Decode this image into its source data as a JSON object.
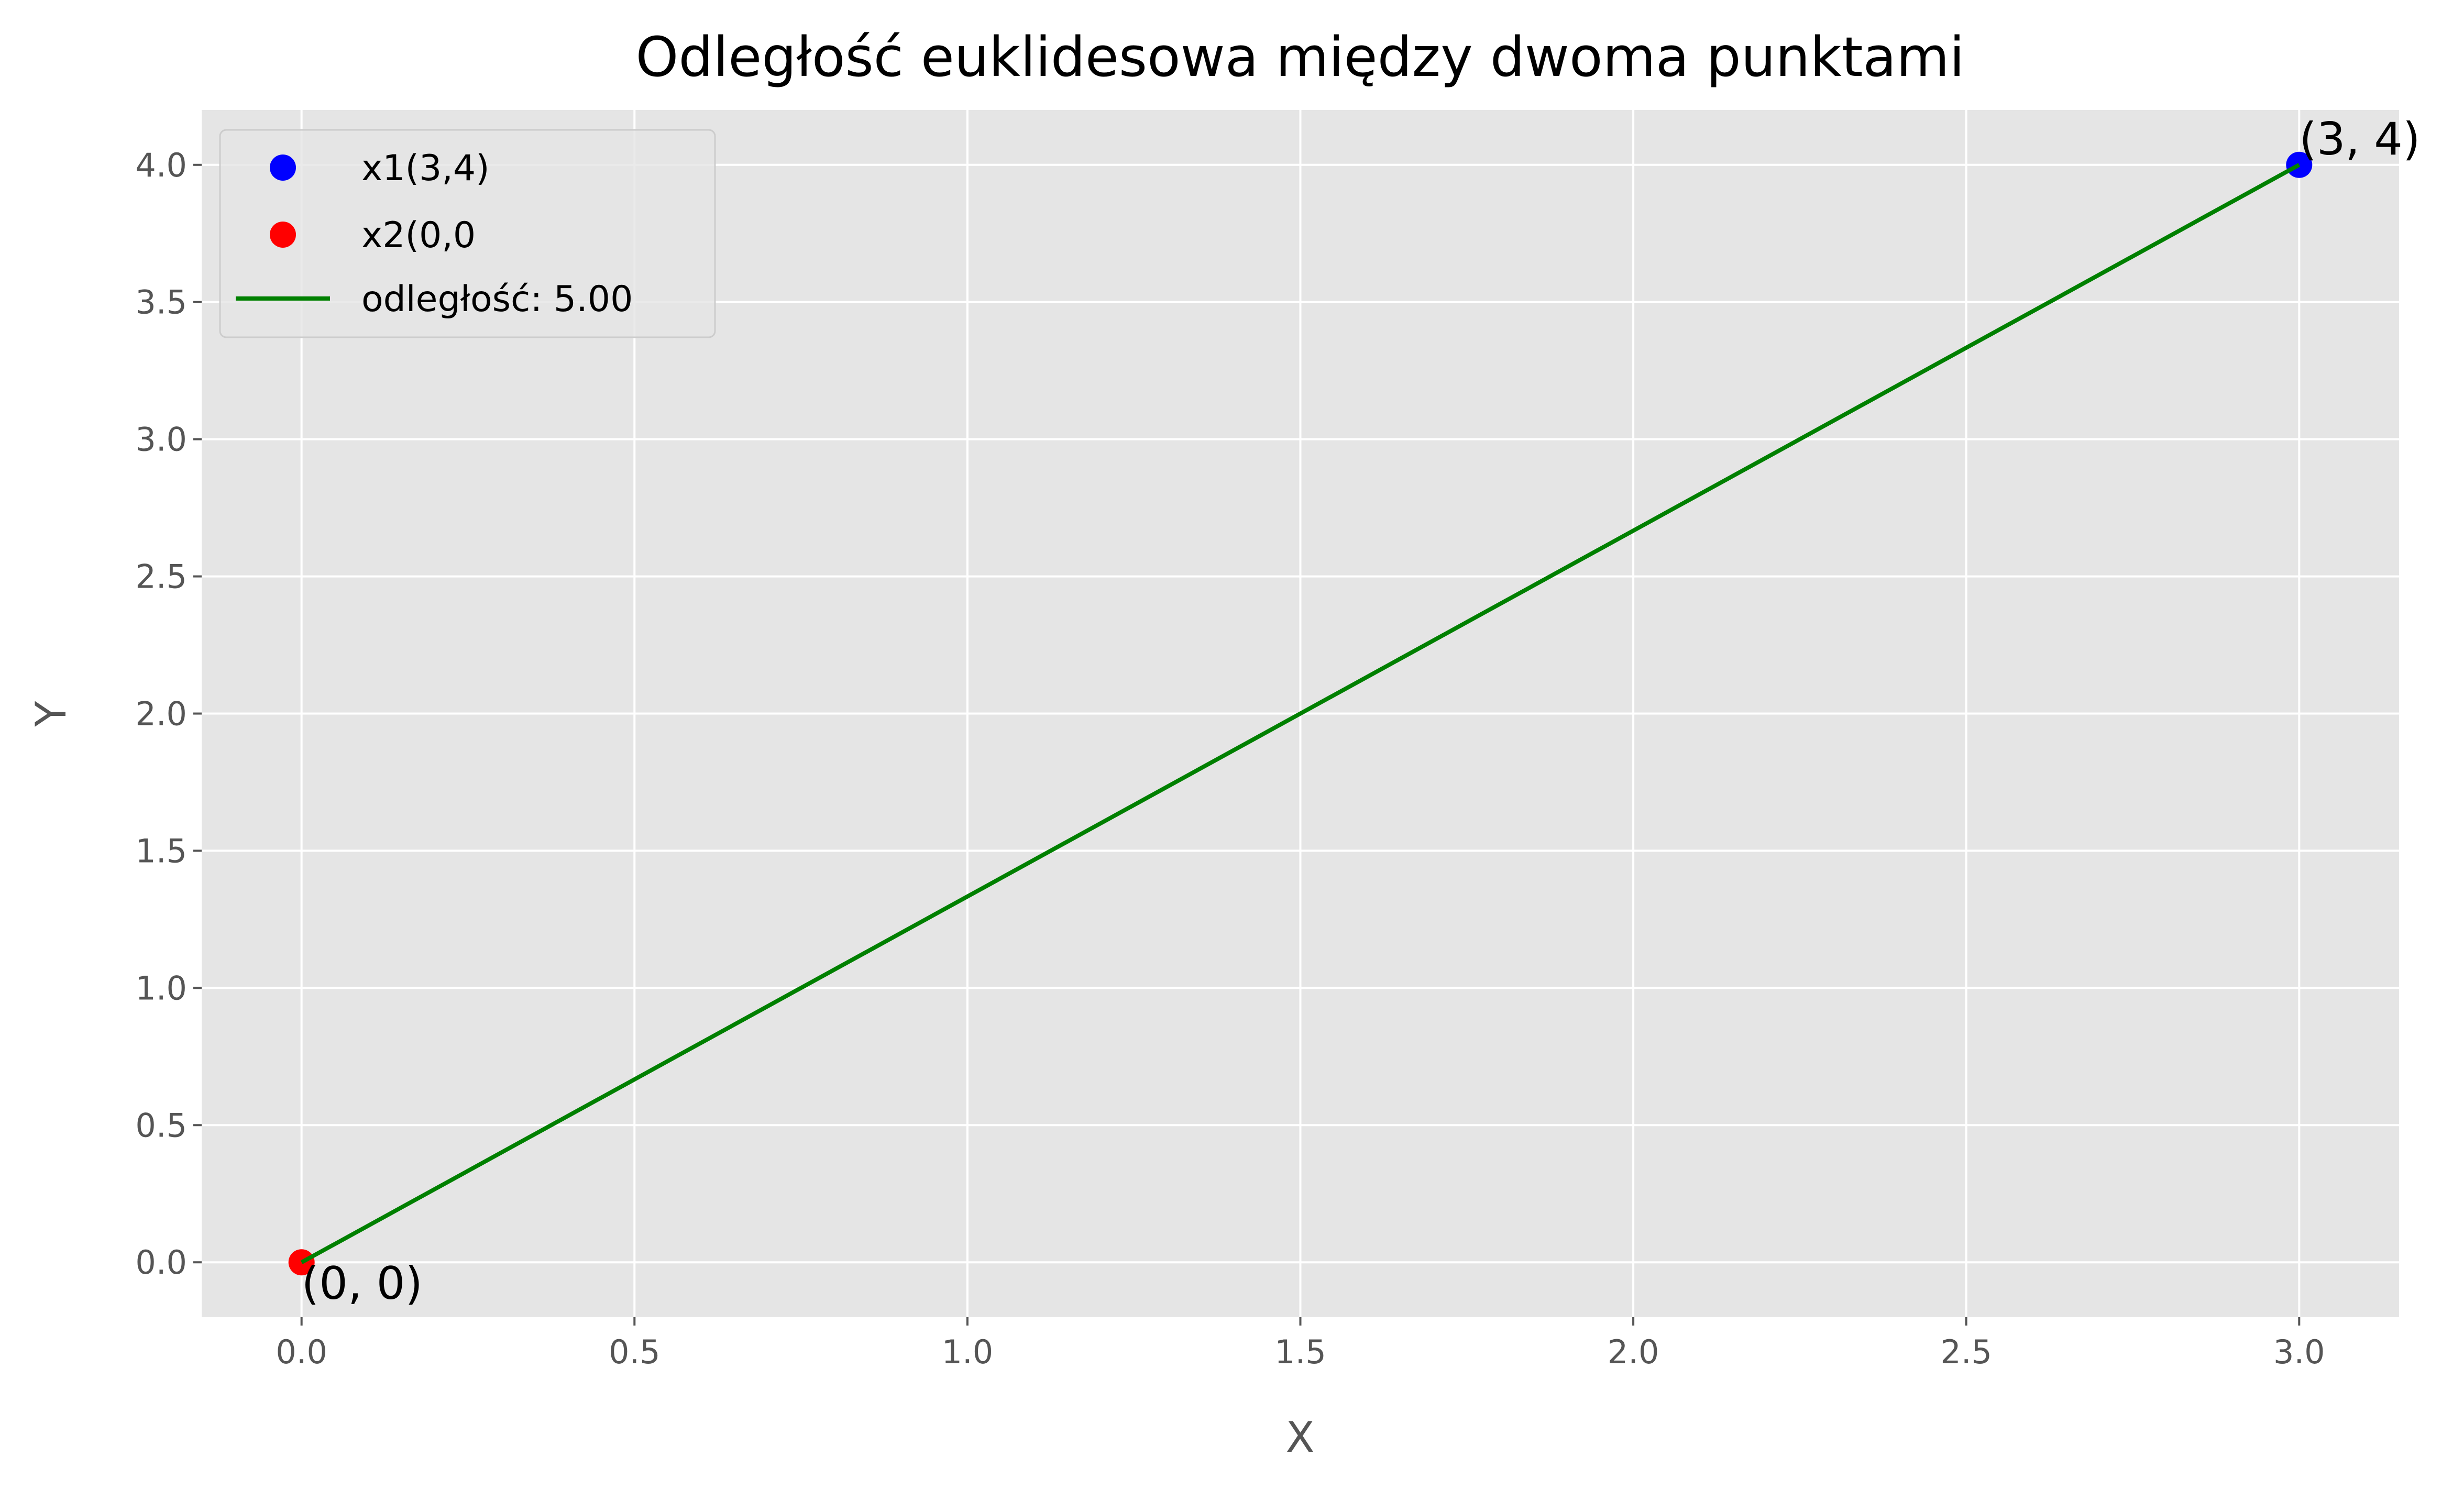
{
  "chart_data": {
    "type": "scatter",
    "title": "Odległość euklidesowa między dwoma punktami",
    "xlabel": "X",
    "ylabel": "Y",
    "xlim": [
      -0.15,
      3.15
    ],
    "ylim": [
      -0.2,
      4.2
    ],
    "grid": true,
    "legend_position": "top-left",
    "xticks": [
      0.0,
      0.5,
      1.0,
      1.5,
      2.0,
      2.5,
      3.0
    ],
    "xtick_labels": [
      "0.0",
      "0.5",
      "1.0",
      "1.5",
      "2.0",
      "2.5",
      "3.0"
    ],
    "yticks": [
      0.0,
      0.5,
      1.0,
      1.5,
      2.0,
      2.5,
      3.0,
      3.5,
      4.0
    ],
    "ytick_labels": [
      "0.0",
      "0.5",
      "1.0",
      "1.5",
      "2.0",
      "2.5",
      "3.0",
      "3.5",
      "4.0"
    ],
    "series": [
      {
        "name": "x1(3,4)",
        "kind": "scatter",
        "color": "#0000ff",
        "points": [
          {
            "x": 3,
            "y": 4
          }
        ]
      },
      {
        "name": "x2(0,0",
        "kind": "scatter",
        "color": "#ff0000",
        "points": [
          {
            "x": 0,
            "y": 0
          }
        ]
      },
      {
        "name": "odległość: 5.00",
        "kind": "line",
        "color": "#008000",
        "points": [
          {
            "x": 0,
            "y": 0
          },
          {
            "x": 3,
            "y": 4
          }
        ]
      }
    ],
    "annotations": [
      {
        "text": "(3, 4)",
        "x": 3,
        "y": 4
      },
      {
        "text": "(0, 0)",
        "x": 0,
        "y": 0
      }
    ],
    "colors": {
      "plot_background": "#e5e5e5",
      "grid": "#ffffff",
      "tick_label": "#555555",
      "legend_background": "#e5e5e5",
      "legend_border": "#cccccc"
    }
  }
}
